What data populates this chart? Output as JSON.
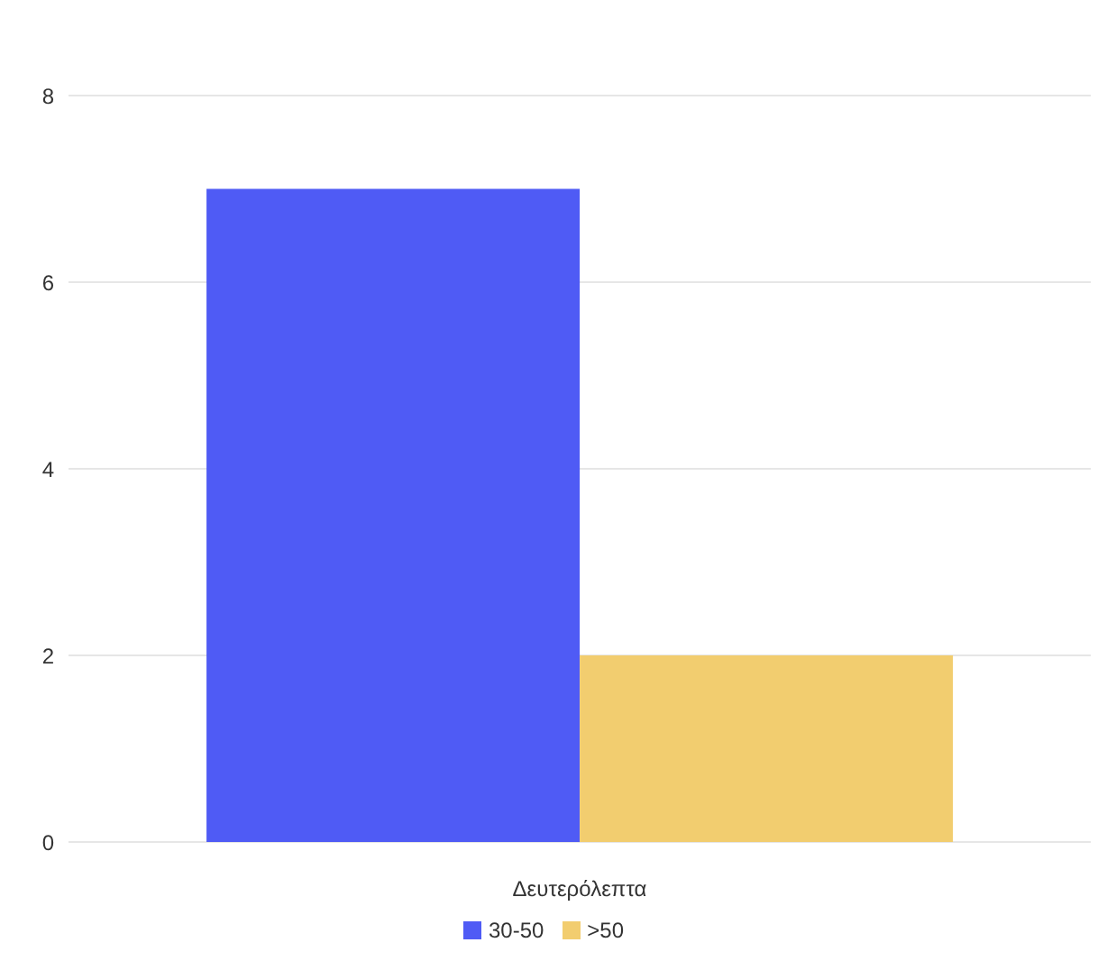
{
  "chart_data": {
    "type": "bar",
    "xlabel": "Δευτερόλεπτα",
    "categories": [
      null
    ],
    "series": [
      {
        "name": "30-50",
        "color": "#4f5bf5",
        "values": [
          7
        ]
      },
      {
        "name": ">50",
        "color": "#f2cd6f",
        "values": [
          2
        ]
      }
    ],
    "ylim": [
      0,
      8
    ],
    "yticks": [
      0,
      2,
      4,
      6,
      8
    ],
    "grid": "y",
    "legend": "bottom"
  }
}
